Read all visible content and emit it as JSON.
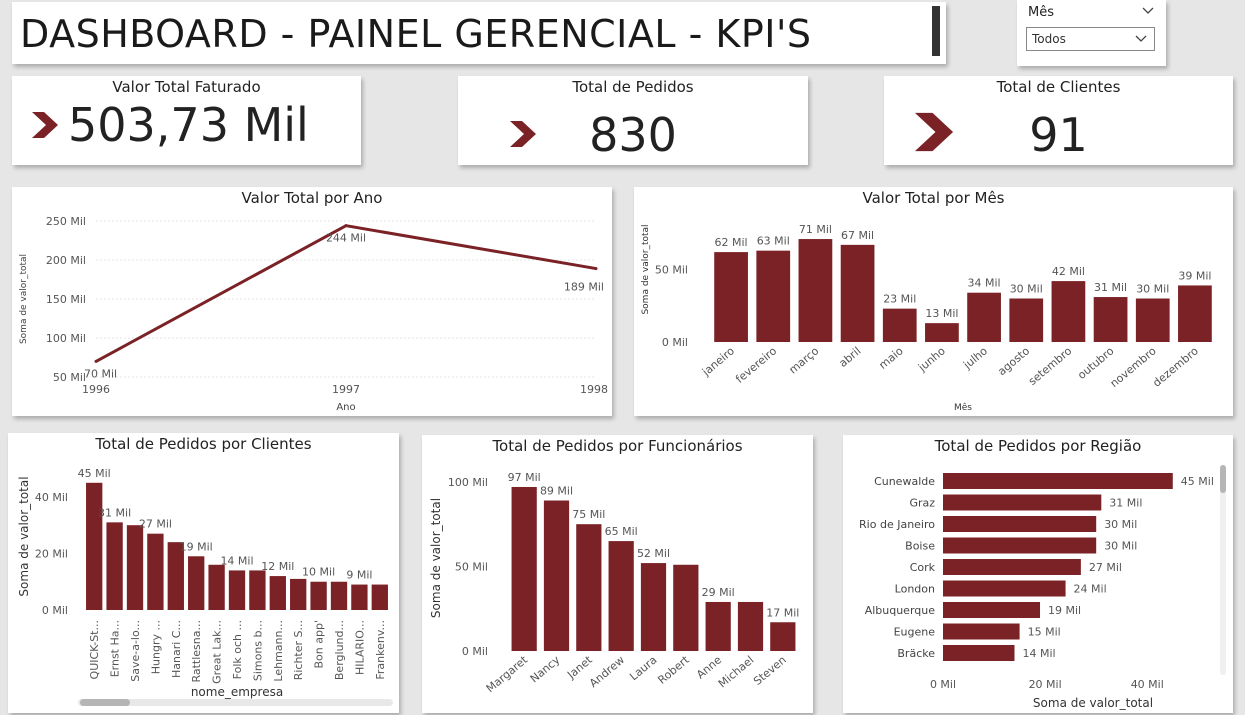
{
  "header": {
    "title": "DASHBOARD - PAINEL GERENCIAL - KPI'S"
  },
  "slicer": {
    "label": "Mês",
    "selected": "Todos"
  },
  "kpis": [
    {
      "title": "Valor Total Faturado",
      "value": "503,73 Mil"
    },
    {
      "title": "Total de Pedidos",
      "value": "830"
    },
    {
      "title": "Total de Clientes",
      "value": "91"
    }
  ],
  "colors": {
    "bar": "#7b2226",
    "line": "#7b2226",
    "accent": "#7b2226"
  },
  "chart_data": [
    {
      "id": "ano",
      "type": "line",
      "title": "Valor Total por Ano",
      "xlabel": "Ano",
      "ylabel": "Soma de valor_total",
      "categories": [
        "1996",
        "1997",
        "1998"
      ],
      "values": [
        70,
        244,
        189
      ],
      "labels": [
        "70 Mil",
        "244 Mil",
        "189 Mil"
      ],
      "yticks": [
        "50 Mil",
        "100 Mil",
        "150 Mil",
        "200 Mil",
        "250 Mil"
      ],
      "ytick_values": [
        50,
        100,
        150,
        200,
        250
      ],
      "ylim": [
        50,
        250
      ],
      "grid": true
    },
    {
      "id": "mes",
      "type": "bar",
      "title": "Valor Total por Mês",
      "xlabel": "Mês",
      "ylabel": "Soma de valor_total",
      "categories": [
        "janeiro",
        "fevereiro",
        "março",
        "abril",
        "maio",
        "junho",
        "julho",
        "agosto",
        "setembro",
        "outubro",
        "novembro",
        "dezembro"
      ],
      "values": [
        62,
        63,
        71,
        67,
        23,
        13,
        34,
        30,
        42,
        31,
        30,
        39
      ],
      "labels": [
        "62 Mil",
        "63 Mil",
        "71 Mil",
        "67 Mil",
        "23 Mil",
        "13 Mil",
        "34 Mil",
        "30 Mil",
        "42 Mil",
        "31 Mil",
        "30 Mil",
        "39 Mil"
      ],
      "yticks": [
        "0 Mil",
        "50 Mil"
      ],
      "ytick_values": [
        0,
        50
      ],
      "ylim": [
        0,
        100
      ]
    },
    {
      "id": "clientes",
      "type": "bar",
      "title": "Total de Pedidos por Clientes",
      "xlabel": "nome_empresa",
      "ylabel": "Soma de valor_total",
      "categories": [
        "QUICK-St...",
        "Ernst Ha...",
        "Save-a-lo...",
        "Hungry ...",
        "Hanari C...",
        "Rattlesna...",
        "Great Lak...",
        "Folk och ...",
        "Simons b...",
        "Lehmann...",
        "Richter S...",
        "Bon app'",
        "Berglund...",
        "HILARIO...",
        "Frankenv..."
      ],
      "values": [
        45,
        31,
        30,
        27,
        24,
        19,
        16,
        14,
        14,
        12,
        11,
        10,
        10,
        9,
        9
      ],
      "labels": [
        "45 Mil",
        "31 Mil",
        "",
        "27 Mil",
        "",
        "19 Mil",
        "",
        "14 Mil",
        "",
        "12 Mil",
        "",
        "10 Mil",
        "",
        "9 Mil",
        ""
      ],
      "yticks": [
        "0 Mil",
        "20 Mil",
        "40 Mil"
      ],
      "ytick_values": [
        0,
        20,
        40
      ],
      "ylim": [
        0,
        52
      ]
    },
    {
      "id": "funcionarios",
      "type": "bar",
      "title": "Total de Pedidos por Funcionários",
      "xlabel": "",
      "ylabel": "Soma de valor_total",
      "categories": [
        "Margaret",
        "Nancy",
        "Janet",
        "Andrew",
        "Laura",
        "Robert",
        "Anne",
        "Michael",
        "Steven"
      ],
      "values": [
        97,
        89,
        75,
        65,
        52,
        51,
        29,
        29,
        17
      ],
      "labels": [
        "97 Mil",
        "89 Mil",
        "75 Mil",
        "65 Mil",
        "52 Mil",
        "",
        "29 Mil",
        "",
        "17 Mil"
      ],
      "yticks": [
        "0 Mil",
        "50 Mil",
        "100 Mil"
      ],
      "ytick_values": [
        0,
        50,
        100
      ],
      "ylim": [
        0,
        110
      ]
    },
    {
      "id": "regiao",
      "type": "bar",
      "orientation": "horizontal",
      "title": "Total de Pedidos por Região",
      "xlabel": "Soma de valor_total",
      "ylabel": "",
      "categories": [
        "Cunewalde",
        "Graz",
        "Rio de Janeiro",
        "Boise",
        "Cork",
        "London",
        "Albuquerque",
        "Eugene",
        "Bräcke"
      ],
      "values": [
        45,
        31,
        30,
        30,
        27,
        24,
        19,
        15,
        14
      ],
      "labels": [
        "45 Mil",
        "31 Mil",
        "30 Mil",
        "30 Mil",
        "27 Mil",
        "24 Mil",
        "19 Mil",
        "15 Mil",
        "14 Mil"
      ],
      "xticks": [
        "0 Mil",
        "20 Mil",
        "40 Mil"
      ],
      "xtick_values": [
        0,
        20,
        40
      ],
      "xlim": [
        0,
        47
      ]
    }
  ]
}
